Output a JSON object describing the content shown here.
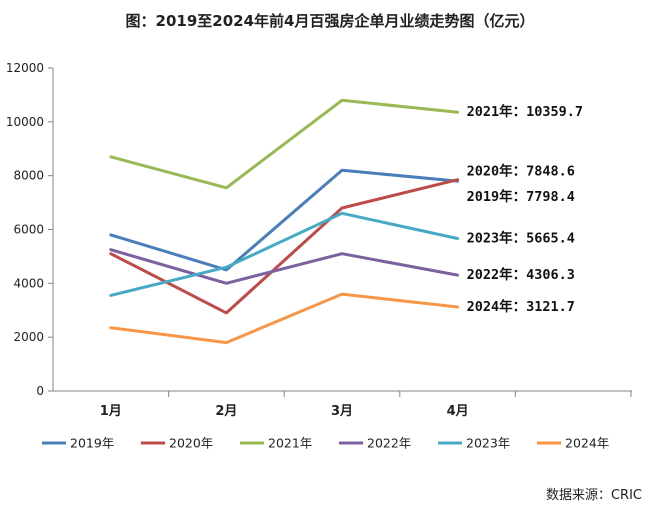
{
  "chart_data": {
    "type": "line",
    "title": "图：2019至2024年前4月百强房企单月业绩走势图（亿元）",
    "categories": [
      "1月",
      "2月",
      "3月",
      "4月"
    ],
    "ylim": [
      0,
      12000
    ],
    "yticks": [
      "0",
      "2000",
      "4000",
      "6000",
      "8000",
      "10000",
      "12000"
    ],
    "grid": false,
    "legend_position": "bottom",
    "series": [
      {
        "name": "2019年",
        "color": "#4a7ebb",
        "values": [
          5800,
          4500,
          8200,
          7798.4
        ],
        "end_label": "2019年：7798.4"
      },
      {
        "name": "2020年",
        "color": "#be4b48",
        "values": [
          5100,
          2900,
          6800,
          7848.6
        ],
        "end_label": "2020年：7848.6"
      },
      {
        "name": "2021年",
        "color": "#98b954",
        "values": [
          8700,
          7550,
          10800,
          10359.7
        ],
        "end_label": "2021年：10359.7"
      },
      {
        "name": "2022年",
        "color": "#7d60a0",
        "values": [
          5250,
          4000,
          5100,
          4306.3
        ],
        "end_label": "2022年：4306.3"
      },
      {
        "name": "2023年",
        "color": "#46aac5",
        "values": [
          3550,
          4600,
          6600,
          5665.4
        ],
        "end_label": "2023年：5665.4"
      },
      {
        "name": "2024年",
        "color": "#f79646",
        "values": [
          2350,
          1800,
          3600,
          3121.7
        ],
        "end_label": "2024年：3121.7"
      }
    ]
  },
  "source": "数据来源：CRIC"
}
